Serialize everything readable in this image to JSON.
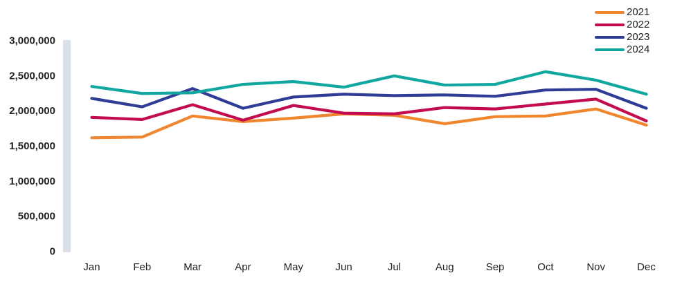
{
  "chart_data": {
    "type": "line",
    "title": "",
    "xlabel": "",
    "ylabel": "",
    "categories": [
      "Jan",
      "Feb",
      "Mar",
      "Apr",
      "May",
      "Jun",
      "Jul",
      "Aug",
      "Sep",
      "Oct",
      "Nov",
      "Dec"
    ],
    "series": [
      {
        "name": "2021",
        "color": "#F0862E",
        "values": [
          1610000,
          1620000,
          1920000,
          1840000,
          1890000,
          1950000,
          1930000,
          1810000,
          1910000,
          1920000,
          2020000,
          1790000
        ]
      },
      {
        "name": "2022",
        "color": "#C30C50",
        "values": [
          1900000,
          1870000,
          2080000,
          1860000,
          2070000,
          1960000,
          1950000,
          2040000,
          2020000,
          2090000,
          2160000,
          1850000
        ]
      },
      {
        "name": "2023",
        "color": "#2E3C96",
        "values": [
          2170000,
          2050000,
          2310000,
          2030000,
          2190000,
          2230000,
          2210000,
          2220000,
          2200000,
          2290000,
          2300000,
          2030000
        ]
      },
      {
        "name": "2024",
        "color": "#0FA7A0",
        "values": [
          2340000,
          2240000,
          2250000,
          2370000,
          2410000,
          2330000,
          2490000,
          2360000,
          2370000,
          2550000,
          2430000,
          2230000
        ]
      }
    ],
    "ylim": [
      0,
      3000000
    ],
    "y_ticks": [
      {
        "value": 0,
        "label": "0"
      },
      {
        "value": 500000,
        "label": "500,000"
      },
      {
        "value": 1000000,
        "label": "1,000,000"
      },
      {
        "value": 1500000,
        "label": "1,500,000"
      },
      {
        "value": 2000000,
        "label": "2,000,000"
      },
      {
        "value": 2500000,
        "label": "2,500,000"
      },
      {
        "value": 3000000,
        "label": "3,000,000"
      }
    ],
    "grid": false,
    "legend_position": "top-right",
    "axis_bar_color": "#D9E0E8",
    "text_color": "#222222"
  }
}
